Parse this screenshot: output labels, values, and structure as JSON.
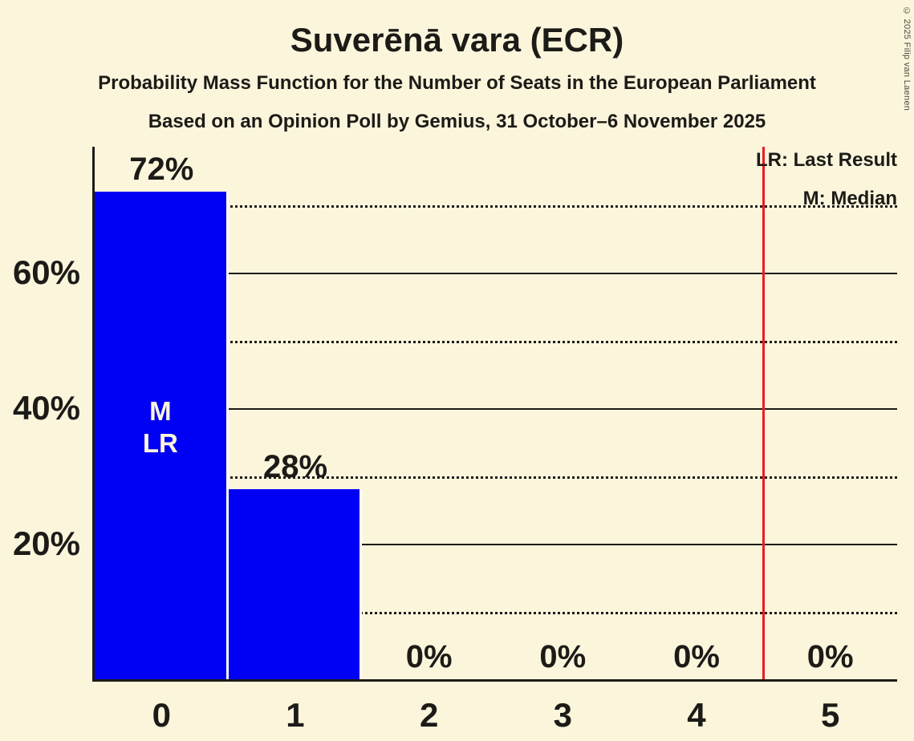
{
  "page": {
    "copyright": "© 2025 Filip van Laenen"
  },
  "header": {
    "title": "Suverēnā vara (ECR)",
    "subtitle1": "Probability Mass Function for the Number of Seats in the European Parliament",
    "subtitle2": "Based on an Opinion Poll by Gemius, 31 October–6 November 2025"
  },
  "legend": {
    "last_result": "LR: Last Result",
    "median": "M: Median"
  },
  "colors": {
    "background": "#FBF5DC",
    "text": "#1C1B17",
    "bar": "#0000F5",
    "bar_divider": "#FFFFFF",
    "bar_annotation_text": "#FBF5DC",
    "grid_and_axis": "#1C1B17",
    "last_result_line": "#EE1B23",
    "copyright_text": "#4D4A42"
  },
  "chart_data": {
    "type": "bar",
    "title": "Suverēnā vara (ECR)",
    "categories": [
      "0",
      "1",
      "2",
      "3",
      "4",
      "5"
    ],
    "values": [
      72,
      28,
      0,
      0,
      0,
      0
    ],
    "bar_labels": [
      "72%",
      "28%",
      "0%",
      "0%",
      "0%",
      "0%"
    ],
    "xlabel": "",
    "ylabel": "",
    "ylim": [
      0,
      78.5
    ],
    "ytick_values": [
      20,
      40,
      60
    ],
    "ytick_labels": [
      "20%",
      "40%",
      "60%"
    ],
    "solid_gridlines": [
      20,
      40,
      60
    ],
    "dotted_gridlines": [
      10,
      30,
      50,
      70
    ],
    "grid": "horizontal",
    "legend_position": "top-right",
    "median_seats": 0,
    "last_result_seats": 0,
    "bar_annotation": {
      "seat_index": 0,
      "lines": [
        "M",
        "LR"
      ]
    },
    "last_result_line_x": 4.5
  }
}
